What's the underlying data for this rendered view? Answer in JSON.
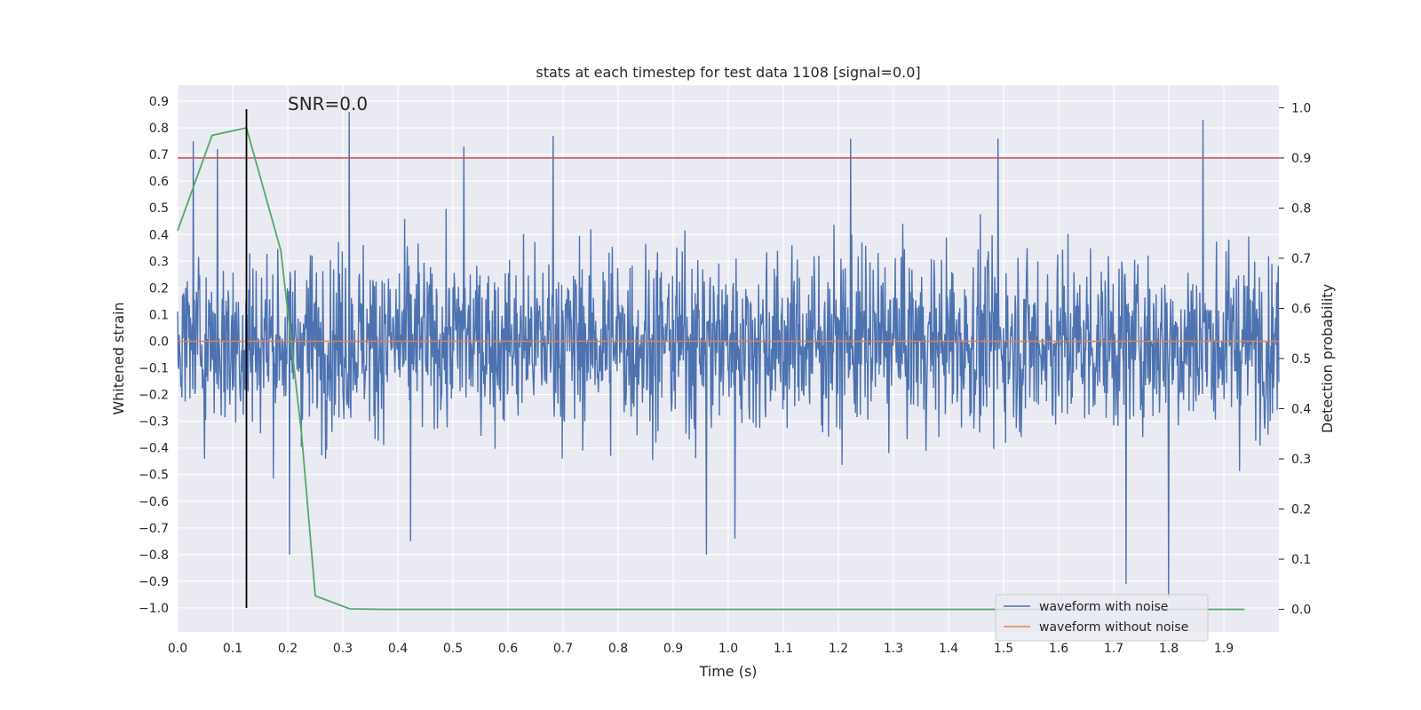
{
  "chart_data": {
    "type": "line",
    "title": "stats at each timestep for test data 1108 [signal=0.0]",
    "xlabel": "Time (s)",
    "ylabel_left": "Whitened strain",
    "ylabel_right": "Detection probability",
    "xlim": [
      0.0,
      2.0
    ],
    "ylim_left": [
      -1.09,
      0.96
    ],
    "ylim_right": [
      -0.045,
      1.045
    ],
    "x_ticks": [
      "0.0",
      "0.1",
      "0.2",
      "0.3",
      "0.4",
      "0.5",
      "0.6",
      "0.7",
      "0.8",
      "0.9",
      "1.0",
      "1.1",
      "1.2",
      "1.3",
      "1.4",
      "1.5",
      "1.6",
      "1.7",
      "1.8",
      "1.9"
    ],
    "y_left_ticks": [
      "0.9",
      "0.8",
      "0.7",
      "0.6",
      "0.5",
      "0.4",
      "0.3",
      "0.2",
      "0.1",
      "0.0",
      "−0.1",
      "−0.2",
      "−0.3",
      "−0.4",
      "−0.5",
      "−0.6",
      "−0.7",
      "−0.8",
      "−0.9",
      "−1.0"
    ],
    "y_right_ticks": [
      "1.0",
      "0.9",
      "0.8",
      "0.7",
      "0.6",
      "0.5",
      "0.4",
      "0.3",
      "0.2",
      "0.1",
      "0.0"
    ],
    "grid": true,
    "legend_position": "bottom-right",
    "annotation": "SNR=0.0",
    "series": [
      {
        "name": "waveform with noise",
        "axis": "left",
        "color": "#4c72b0",
        "description_samples": 2048,
        "envelope": {
          "typical_abs": 0.3,
          "min": -0.96,
          "max": 0.86
        },
        "peaks": [
          {
            "x": 0.028,
            "y": 0.75
          },
          {
            "x": 0.072,
            "y": 0.72
          },
          {
            "x": 0.312,
            "y": 0.86
          },
          {
            "x": 0.52,
            "y": 0.73
          },
          {
            "x": 0.682,
            "y": 0.77
          },
          {
            "x": 1.222,
            "y": 0.76
          },
          {
            "x": 1.49,
            "y": 0.76
          },
          {
            "x": 1.862,
            "y": 0.83
          }
        ],
        "troughs": [
          {
            "x": 0.203,
            "y": -0.8
          },
          {
            "x": 0.423,
            "y": -0.75
          },
          {
            "x": 0.96,
            "y": -0.8
          },
          {
            "x": 1.012,
            "y": -0.74
          },
          {
            "x": 1.722,
            "y": -0.91
          },
          {
            "x": 1.8,
            "y": -0.96
          }
        ]
      },
      {
        "name": "waveform without noise",
        "axis": "left",
        "color": "#dd8452",
        "x": [
          0.0,
          1.9999
        ],
        "y": [
          0.0,
          0.0
        ]
      },
      {
        "name": "",
        "axis": "right",
        "color": "#55a868",
        "x": [
          0.0,
          0.0625,
          0.125,
          0.1875,
          0.225,
          0.25,
          0.3125,
          0.375,
          1.9375
        ],
        "y": [
          0.755,
          0.945,
          0.96,
          0.715,
          0.35,
          0.027,
          0.001,
          0.0,
          0.0
        ]
      },
      {
        "name": "",
        "axis": "right",
        "color": "#c44e52",
        "type": "hline",
        "y": 0.9
      },
      {
        "name": "",
        "axis": "left",
        "color": "#000000",
        "type": "vline",
        "x": 0.125,
        "y_range": [
          -1.0,
          0.87
        ]
      }
    ]
  }
}
